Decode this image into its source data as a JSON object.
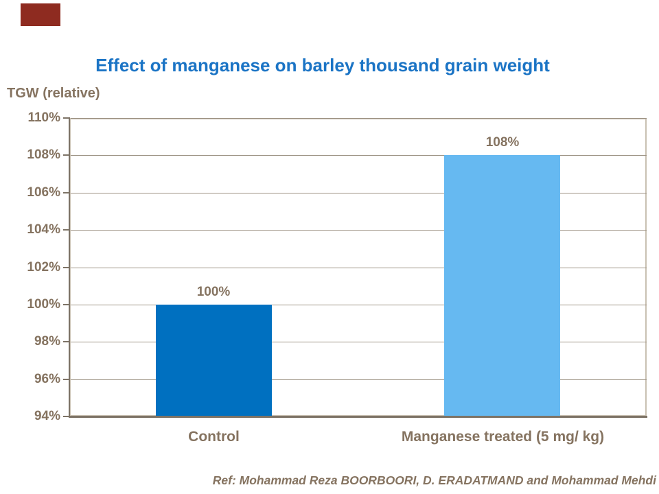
{
  "slide": {
    "title": "Effect of manganese on barley thousand grain weight",
    "axis_title": "TGW (relative)",
    "reference": "Ref: Mohammad Reza BOORBOORI, D. ERADATMAND and Mohammad Mehdi"
  },
  "colors": {
    "title_blue": "#1B74C5",
    "text_brown": "#857360",
    "axis": "#7D7366",
    "gridline": "#9C9283",
    "plot_border": "#C9C0B2",
    "marker_red": "#8E2B20",
    "bar_control": "#0070C0",
    "bar_treated": "#66B9F1"
  },
  "chart_data": {
    "type": "bar",
    "title": "Effect of manganese on barley thousand grain weight",
    "xlabel": "",
    "ylabel": "TGW (relative)",
    "categories": [
      "Control",
      "Manganese treated (5 mg/ kg)"
    ],
    "values": [
      100,
      108
    ],
    "data_labels": [
      "100%",
      "108%"
    ],
    "bar_colors": [
      "#0070C0",
      "#66B9F1"
    ],
    "ylim": [
      94,
      110
    ],
    "ytick_step": 2,
    "ytick_labels": [
      "94%",
      "96%",
      "98%",
      "100%",
      "102%",
      "104%",
      "106%",
      "108%",
      "110%"
    ],
    "grid": true,
    "legend": false
  }
}
